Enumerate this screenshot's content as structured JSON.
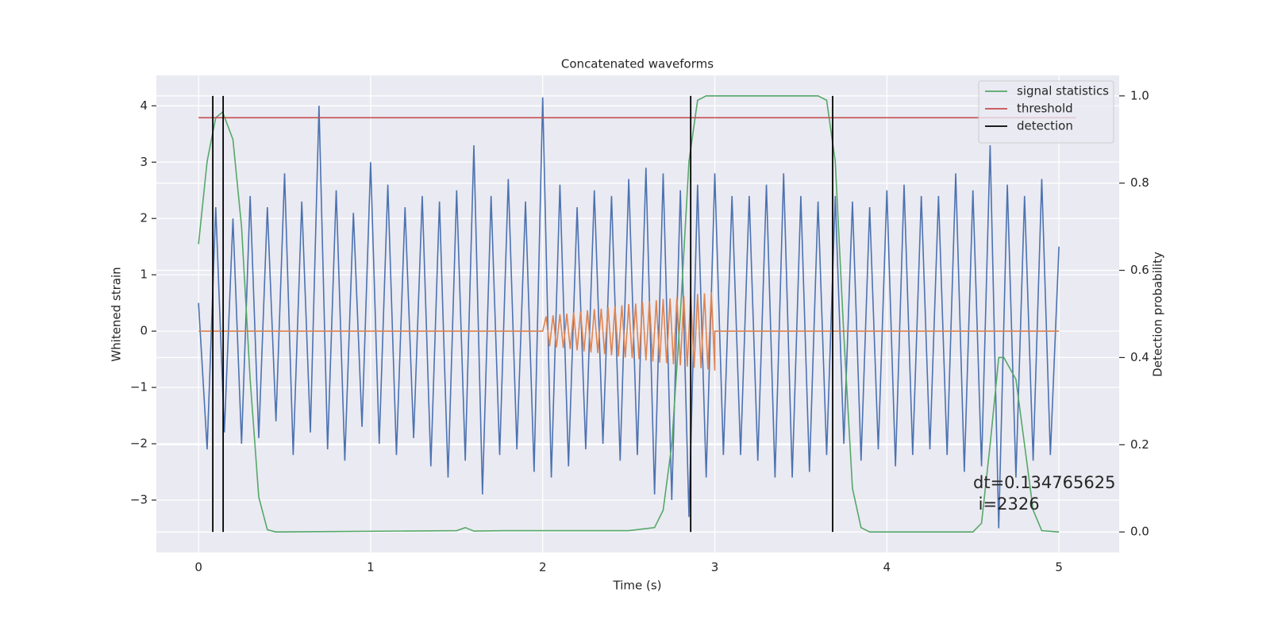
{
  "chart_data": {
    "type": "line",
    "title": "Concatenated waveforms",
    "xlabel": "Time (s)",
    "ylabel": "Whitened strain",
    "y2label": "Detection probability",
    "xlim": [
      -0.245,
      5.35
    ],
    "ylim": [
      -3.93,
      4.54
    ],
    "y2lim": [
      -0.047,
      1.047
    ],
    "xticks": [
      0,
      1,
      2,
      3,
      4,
      5
    ],
    "yticks": [
      {
        "value": -3,
        "label": "−3"
      },
      {
        "value": -2,
        "label": "−2"
      },
      {
        "value": -1,
        "label": "−1"
      },
      0,
      1,
      2,
      3,
      4
    ],
    "y2ticks": [
      {
        "value": 0,
        "label": "0.0"
      },
      0.2,
      0.4,
      0.6,
      0.8,
      {
        "value": 1,
        "label": "1.0"
      }
    ],
    "grid": true,
    "legend": "upper right",
    "annotation": [
      "dt=0.134765625",
      " i=2326"
    ],
    "series": [
      {
        "color": "#4c72b0",
        "x": [
          0,
          0.05,
          0.1,
          0.15,
          0.2,
          0.25,
          0.3,
          0.35,
          0.4,
          0.45,
          0.5,
          0.55,
          0.6,
          0.65,
          0.7,
          0.75,
          0.8,
          0.85,
          0.9,
          0.95,
          1.0,
          1.05,
          1.1,
          1.15,
          1.2,
          1.25,
          1.3,
          1.35,
          1.4,
          1.45,
          1.5,
          1.55,
          1.6,
          1.65,
          1.7,
          1.75,
          1.8,
          1.85,
          1.9,
          1.95,
          2.0,
          2.05,
          2.1,
          2.15,
          2.2,
          2.25,
          2.3,
          2.35,
          2.4,
          2.45,
          2.5,
          2.55,
          2.6,
          2.65,
          2.7,
          2.75,
          2.8,
          2.85,
          2.9,
          2.95,
          3.0,
          3.05,
          3.1,
          3.15,
          3.2,
          3.25,
          3.3,
          3.35,
          3.4,
          3.45,
          3.5,
          3.55,
          3.6,
          3.65,
          3.7,
          3.75,
          3.8,
          3.85,
          3.9,
          3.95,
          4.0,
          4.05,
          4.1,
          4.15,
          4.2,
          4.25,
          4.3,
          4.35,
          4.4,
          4.45,
          4.5,
          4.55,
          4.6,
          4.65,
          4.7,
          4.75,
          4.8,
          4.85,
          4.9,
          4.95,
          5.0
        ],
        "values": [
          0.5,
          -2.1,
          2.2,
          -1.8,
          2.0,
          -2.0,
          2.4,
          -1.9,
          2.2,
          -1.6,
          2.8,
          -2.2,
          2.3,
          -1.8,
          4.0,
          -2.1,
          2.5,
          -2.3,
          2.1,
          -1.7,
          3.0,
          -2.0,
          2.6,
          -2.2,
          2.2,
          -1.9,
          2.4,
          -2.4,
          2.3,
          -2.6,
          2.5,
          -2.3,
          3.3,
          -2.9,
          2.4,
          -2.2,
          2.7,
          -2.1,
          2.3,
          -2.5,
          4.15,
          -2.6,
          2.6,
          -2.4,
          2.2,
          -2.1,
          2.5,
          -2.0,
          2.4,
          -2.3,
          2.7,
          -2.2,
          2.9,
          -2.9,
          2.8,
          -3.0,
          2.5,
          -3.3,
          2.6,
          -2.6,
          2.8,
          -2.2,
          2.4,
          -2.2,
          2.4,
          -2.3,
          2.6,
          -2.6,
          2.8,
          -2.6,
          2.4,
          -2.5,
          2.3,
          -2.2,
          2.4,
          -2.0,
          2.3,
          -2.3,
          2.2,
          -2.1,
          2.5,
          -2.4,
          2.6,
          -2.2,
          2.4,
          -2.1,
          2.4,
          -2.2,
          2.8,
          -2.5,
          2.5,
          -2.4,
          3.3,
          -3.5,
          2.6,
          -2.6,
          2.4,
          -2.3,
          2.7,
          -2.2,
          1.5
        ]
      },
      {
        "color": "#dd8452",
        "x": [
          0,
          2.0,
          2.02,
          2.04,
          2.06,
          2.08,
          2.1,
          2.12,
          2.14,
          2.16,
          2.18,
          2.2,
          2.22,
          2.24,
          2.26,
          2.28,
          2.3,
          2.32,
          2.34,
          2.36,
          2.38,
          2.4,
          2.42,
          2.44,
          2.46,
          2.48,
          2.5,
          2.52,
          2.54,
          2.56,
          2.58,
          2.6,
          2.62,
          2.64,
          2.66,
          2.68,
          2.7,
          2.72,
          2.74,
          2.76,
          2.78,
          2.8,
          2.82,
          2.84,
          2.86,
          2.88,
          2.9,
          2.92,
          2.94,
          2.96,
          2.98,
          3.0,
          3.0,
          5.0
        ],
        "values": [
          0,
          0,
          0.26,
          -0.27,
          0.28,
          -0.29,
          0.3,
          -0.3,
          0.31,
          -0.32,
          0.33,
          -0.34,
          0.35,
          -0.36,
          0.37,
          -0.38,
          0.39,
          -0.39,
          0.4,
          -0.41,
          0.42,
          -0.43,
          0.44,
          -0.45,
          0.46,
          -0.47,
          0.48,
          -0.48,
          0.49,
          -0.5,
          0.51,
          -0.52,
          0.53,
          -0.54,
          0.55,
          -0.56,
          0.57,
          -0.57,
          0.58,
          -0.59,
          0.6,
          -0.61,
          0.62,
          -0.63,
          0.64,
          -0.65,
          0.66,
          -0.66,
          0.67,
          -0.68,
          0.69,
          -0.7,
          0,
          0
        ]
      },
      {
        "name": "signal statistics",
        "color": "#55a868",
        "axis": "y2",
        "x": [
          0,
          0.05,
          0.1,
          0.14,
          0.2,
          0.25,
          0.3,
          0.35,
          0.4,
          0.45,
          1.5,
          1.55,
          1.6,
          1.8,
          2.5,
          2.65,
          2.7,
          2.75,
          2.8,
          2.85,
          2.9,
          2.95,
          3.6,
          3.65,
          3.7,
          3.75,
          3.8,
          3.85,
          3.9,
          4.5,
          4.55,
          4.6,
          4.65,
          4.68,
          4.75,
          4.8,
          4.85,
          4.9,
          5.0
        ],
        "values": [
          0.66,
          0.85,
          0.95,
          0.963,
          0.9,
          0.7,
          0.35,
          0.08,
          0.005,
          0,
          0.003,
          0.01,
          0.002,
          0.003,
          0.003,
          0.01,
          0.05,
          0.2,
          0.5,
          0.85,
          0.99,
          1.0,
          1.0,
          0.99,
          0.85,
          0.45,
          0.1,
          0.01,
          0,
          0,
          0.02,
          0.2,
          0.4,
          0.4,
          0.35,
          0.2,
          0.05,
          0.003,
          0
        ]
      },
      {
        "name": "threshold",
        "color": "#c44e52",
        "axis": "y2",
        "x": [
          0,
          5.1
        ],
        "values": [
          0.95,
          0.95
        ]
      }
    ],
    "detection": {
      "name": "detection",
      "color": "#000000",
      "x": [
        0.083,
        0.143,
        2.86,
        3.685
      ],
      "span": [
        0,
        1
      ]
    }
  }
}
